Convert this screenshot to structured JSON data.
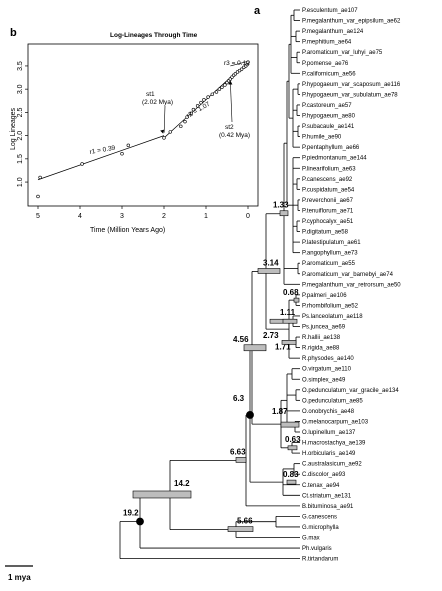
{
  "panels": {
    "a": "a",
    "b": "b"
  },
  "chart_data": [
    {
      "type": "line",
      "panel": "b",
      "title": "Log-Lineages Through Time",
      "xlabel": "Time (Million Years Ago)",
      "ylabel": "Log Lineages",
      "xlim": [
        5,
        0
      ],
      "ylim": [
        0.7,
        3.8
      ],
      "xticks": [
        "5",
        "4",
        "3",
        "2",
        "1",
        "0"
      ],
      "yticks": [
        "1.0",
        "1.5",
        "2.0",
        "2.5",
        "3.0",
        "3.5"
      ],
      "points": [
        {
          "x": 5.0,
          "y": 0.69
        },
        {
          "x": 4.95,
          "y": 1.1
        },
        {
          "x": 3.95,
          "y": 1.39
        },
        {
          "x": 3.0,
          "y": 1.61
        },
        {
          "x": 2.85,
          "y": 1.79
        },
        {
          "x": 2.0,
          "y": 1.95
        },
        {
          "x": 1.85,
          "y": 2.08
        },
        {
          "x": 1.6,
          "y": 2.2
        },
        {
          "x": 1.5,
          "y": 2.3
        },
        {
          "x": 1.45,
          "y": 2.4
        },
        {
          "x": 1.35,
          "y": 2.48
        },
        {
          "x": 1.3,
          "y": 2.56
        },
        {
          "x": 1.2,
          "y": 2.64
        },
        {
          "x": 1.12,
          "y": 2.71
        },
        {
          "x": 1.05,
          "y": 2.77
        },
        {
          "x": 0.95,
          "y": 2.83
        },
        {
          "x": 0.85,
          "y": 2.89
        },
        {
          "x": 0.75,
          "y": 2.94
        },
        {
          "x": 0.68,
          "y": 3.0
        },
        {
          "x": 0.62,
          "y": 3.04
        },
        {
          "x": 0.55,
          "y": 3.09
        },
        {
          "x": 0.5,
          "y": 3.14
        },
        {
          "x": 0.46,
          "y": 3.18
        },
        {
          "x": 0.42,
          "y": 3.22
        },
        {
          "x": 0.38,
          "y": 3.26
        },
        {
          "x": 0.34,
          "y": 3.3
        },
        {
          "x": 0.3,
          "y": 3.33
        },
        {
          "x": 0.25,
          "y": 3.37
        },
        {
          "x": 0.2,
          "y": 3.4
        },
        {
          "x": 0.15,
          "y": 3.43
        },
        {
          "x": 0.1,
          "y": 3.47
        },
        {
          "x": 0.05,
          "y": 3.5
        },
        {
          "x": 0.02,
          "y": 3.53
        },
        {
          "x": 0.0,
          "y": 3.58
        }
      ],
      "segments": [
        {
          "label": "r1 = 0.39",
          "from": [
            5.0,
            1.05
          ],
          "to": [
            2.0,
            2.0
          ]
        },
        {
          "label": "r2 = 1.07",
          "from": [
            2.0,
            1.95
          ],
          "to": [
            0.42,
            3.25
          ]
        },
        {
          "label": "r3 = 0.12",
          "from": [
            0.42,
            3.5
          ],
          "to": [
            0.0,
            3.6
          ]
        }
      ],
      "breakpoints": [
        {
          "label": "st1",
          "age": "(2.02 Mya)",
          "x": 2.02
        },
        {
          "label": "st2",
          "age": "(0.42 Mya)",
          "x": 0.42
        }
      ]
    },
    {
      "type": "phylogeny",
      "panel": "a",
      "scale_label": "1 mya",
      "taxa": [
        "P.esculentum_ae107",
        "P.megalanthum_var_epipsilum_ae62",
        "P.megalanthum_ae124",
        "P.mephitium_ae64",
        "P.aromaticum_var_luhyi_ae75",
        "P.pomense_ae76",
        "P.californicum_ae56",
        "P.hypogaeum_var_scaposum_ae116",
        "P.hypogaeum_var_subulatum_ae78",
        "P.castoreum_ae57",
        "P.hypogaeum_ae80",
        "P.subacaule_ae141",
        "P.humile_ae90",
        "P.pentaphyllum_ae66",
        "P.piedmontanum_ae144",
        "P.linearifolium_ae63",
        "P.canescens_ae92",
        "P.cuspidatum_ae54",
        "P.reverchonii_ae67",
        "P.tenuiflorum_ae71",
        "P.cyphocalyx_ae51",
        "P.digitatum_ae58",
        "P.latestipulatum_ae61",
        "P.angophyllum_ae73",
        "P.aromaticum_ae55",
        "P.aromaticum_var_barnebyi_ae74",
        "P.megalanthum_var_retrorsum_ae50",
        "P.palmeri_ae106",
        "P.rhombifolium_ae52",
        "Ps.lanceolatum_ae118",
        "Ps.juncea_ae69",
        "R.hallii_ae138",
        "R.rigida_ae88",
        "R.physodes_ae140",
        "O.virgatum_ae110",
        "O.simplex_ae49",
        "O.pedunculatum_var_gracile_ae134",
        "O.pedunculatum_ae85",
        "O.onobrychis_ae48",
        "O.melanocarpum_ae103",
        "O.lupinellum_ae137",
        "H.macrostachya_ae139",
        "H.orbicularis_ae149",
        "C.australasicum_ae92",
        "C.discolor_ae93",
        "C.tenax_ae94",
        "Ct.striatum_ae131",
        "B.bituminosa_ae91",
        "G.canescens",
        "G.microphylla",
        "G.max",
        "Ph.vulgaris",
        "R.tirtandarum"
      ],
      "node_ages": [
        "19.2",
        "14.2",
        "6.63",
        "6.3",
        "5.66",
        "4.56",
        "3.14",
        "2.73",
        "1.87",
        "1.71",
        "1.33",
        "1.11",
        "0.83",
        "0.68",
        "0.63"
      ]
    }
  ]
}
